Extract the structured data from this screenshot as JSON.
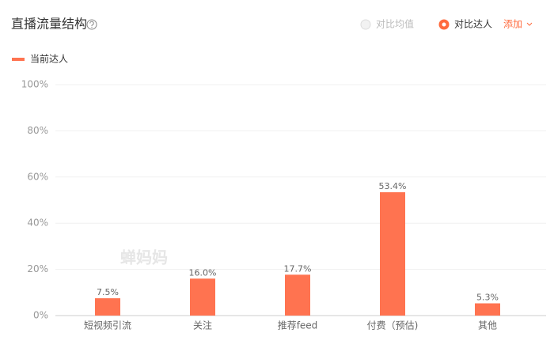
{
  "chart_data": {
    "type": "bar",
    "title": "直播流量结构",
    "controls": {
      "compare_average": "对比均值",
      "compare_creator": "对比达人",
      "add": "添加"
    },
    "watermark": "蝉妈妈",
    "legend": "top-left",
    "series": [
      {
        "name": "当前达人",
        "color": "#ff7350",
        "values": [
          7.5,
          16.0,
          17.7,
          53.4,
          5.3
        ],
        "value_labels": [
          "7.5%",
          "16.0%",
          "17.7%",
          "53.4%",
          "5.3%"
        ]
      }
    ],
    "categories": [
      "短视频引流",
      "关注",
      "推荐feed",
      "付费（预估)",
      "其他"
    ],
    "ylim": [
      0,
      100
    ],
    "yticks": [
      {
        "value": 0,
        "label": "0%"
      },
      {
        "value": 20,
        "label": "20%"
      },
      {
        "value": 40,
        "label": "40%"
      },
      {
        "value": 60,
        "label": "60%"
      },
      {
        "value": 80,
        "label": "80%"
      },
      {
        "value": 100,
        "label": "100%"
      }
    ],
    "grid": true
  }
}
